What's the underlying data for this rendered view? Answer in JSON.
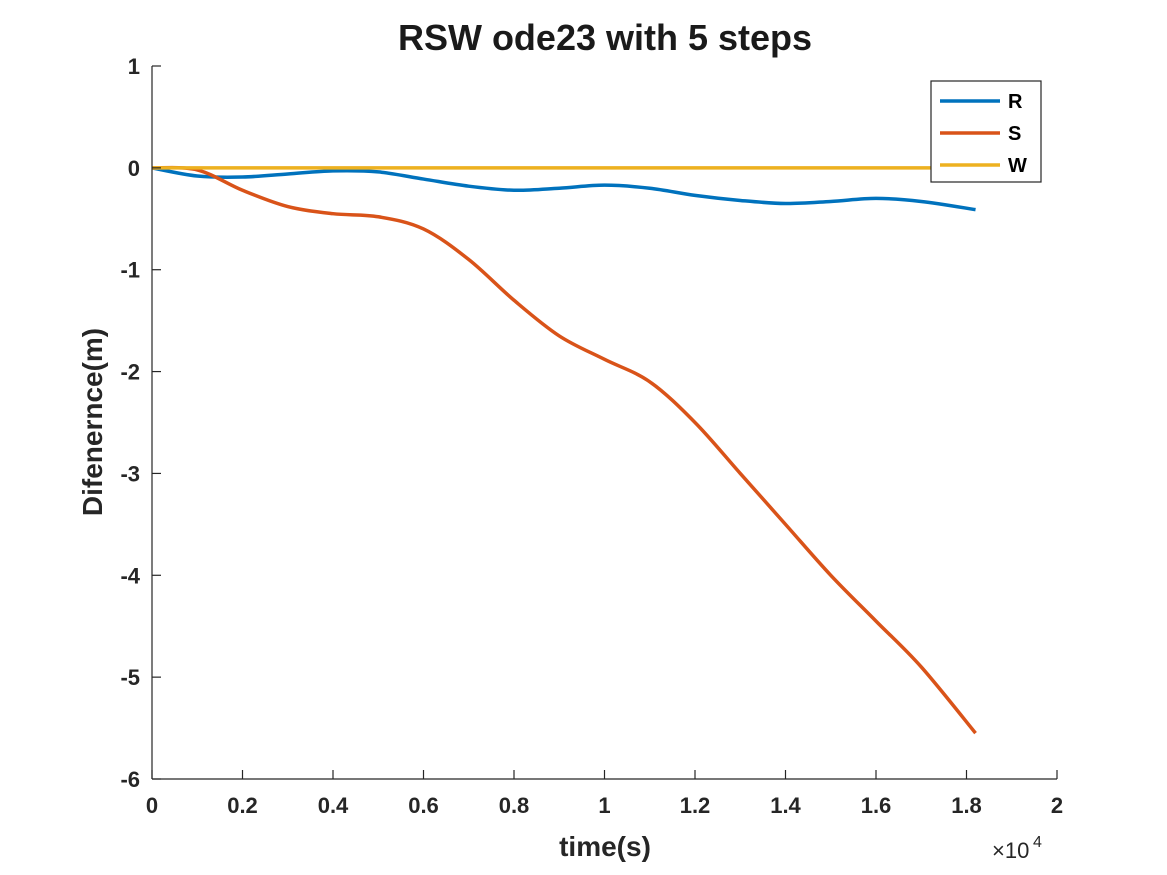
{
  "chart_data": {
    "type": "line",
    "title": "RSW ode23 with 5 steps",
    "xlabel": "time(s)",
    "ylabel": "Difenernce(m)",
    "x_exponent_base": "×10",
    "x_exponent_power": "4",
    "xlim": [
      0,
      2
    ],
    "ylim": [
      -6,
      1
    ],
    "xticks": [
      0,
      0.2,
      0.4,
      0.6,
      0.8,
      1,
      1.2,
      1.4,
      1.6,
      1.8,
      2
    ],
    "xtick_labels": [
      "0",
      "0.2",
      "0.4",
      "0.6",
      "0.8",
      "1",
      "1.2",
      "1.4",
      "1.6",
      "1.8",
      "2"
    ],
    "yticks": [
      1,
      0,
      -1,
      -2,
      -3,
      -4,
      -5,
      -6
    ],
    "ytick_labels": [
      "1",
      "0",
      "-1",
      "-2",
      "-3",
      "-4",
      "-5",
      "-6"
    ],
    "grid": false,
    "legend_position": "top-right",
    "x": [
      0,
      0.1,
      0.2,
      0.3,
      0.4,
      0.5,
      0.6,
      0.7,
      0.8,
      0.9,
      1.0,
      1.1,
      1.2,
      1.3,
      1.4,
      1.5,
      1.6,
      1.7,
      1.82
    ],
    "series": [
      {
        "name": "R",
        "color": "#0072BD",
        "values": [
          0,
          -0.08,
          -0.09,
          -0.06,
          -0.03,
          -0.04,
          -0.11,
          -0.18,
          -0.22,
          -0.2,
          -0.17,
          -0.2,
          -0.27,
          -0.32,
          -0.35,
          -0.33,
          -0.3,
          -0.33,
          -0.41
        ]
      },
      {
        "name": "S",
        "color": "#D95319",
        "values": [
          0,
          -0.02,
          -0.22,
          -0.38,
          -0.45,
          -0.48,
          -0.6,
          -0.9,
          -1.3,
          -1.65,
          -1.88,
          -2.1,
          -2.5,
          -3.0,
          -3.5,
          -4.0,
          -4.45,
          -4.9,
          -5.55
        ]
      },
      {
        "name": "W",
        "color": "#EDB120",
        "values": [
          0,
          0,
          0,
          0,
          0,
          0,
          0,
          0,
          0,
          0,
          0,
          0,
          0,
          0,
          0,
          0,
          0,
          0,
          0
        ]
      }
    ]
  }
}
